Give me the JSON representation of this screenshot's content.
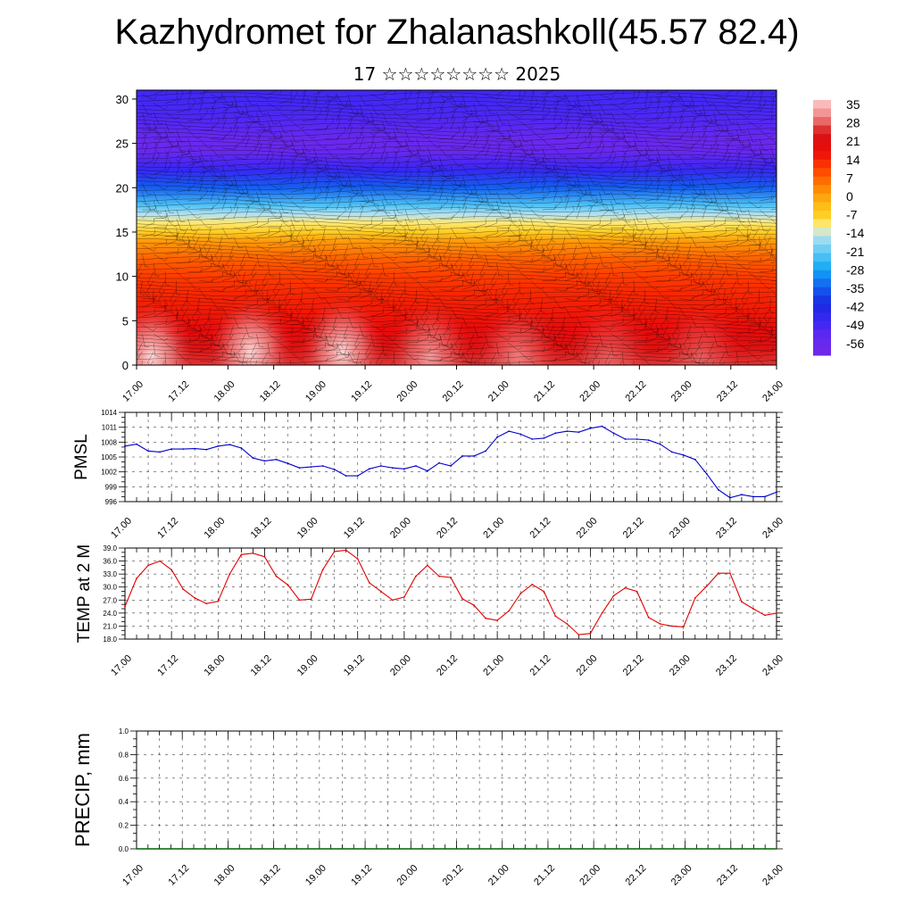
{
  "title": "Kazhydromet for Zhalanashkoll(45.57 82.4)",
  "subtitle": "17 ☆☆☆☆☆☆☆☆ 2025",
  "chart_data": [
    {
      "type": "heatmap",
      "title": "Kazhydromet for Zhalanashkoll(45.57 82.4)",
      "subtitle": "17 ☆☆☆☆☆☆☆☆ 2025",
      "xlabel": "",
      "ylabel": "",
      "x_ticks": [
        "17.00",
        "17.12",
        "18.00",
        "18.12",
        "19.00",
        "19.12",
        "20.00",
        "20.12",
        "21.00",
        "21.12",
        "22.00",
        "22.12",
        "23.00",
        "23.12",
        "24.00"
      ],
      "xlim": [
        0,
        168
      ],
      "y_ticks": [
        0,
        5,
        10,
        15,
        20,
        25,
        30
      ],
      "ylim": [
        0,
        31
      ],
      "colorbar_labels": [
        "35",
        "28",
        "21",
        "14",
        "7",
        "0",
        "-7",
        "-14",
        "-21",
        "-28",
        "-35",
        "-42",
        "-49",
        "-56"
      ],
      "colorbar_range": [
        -63,
        42
      ],
      "temperature_profile": {
        "heights": [
          0,
          2,
          4,
          6,
          8,
          10,
          12,
          14,
          15,
          16,
          17,
          18,
          20,
          22,
          24,
          25,
          26,
          28,
          30,
          31
        ],
        "values": [
          30,
          26,
          22,
          19,
          17,
          14,
          10,
          3,
          -5,
          -9,
          -14,
          -22,
          -35,
          -48,
          -58,
          -60,
          -56,
          -52,
          -50,
          -50
        ]
      },
      "warm_cells": [
        {
          "x": 4,
          "y": 1,
          "value": 40
        },
        {
          "x": 30,
          "y": 1.5,
          "value": 40
        },
        {
          "x": 54,
          "y": 1.5,
          "value": 40
        },
        {
          "x": 77,
          "y": 1,
          "value": 36
        },
        {
          "x": 100,
          "y": 1,
          "value": 34
        },
        {
          "x": 124,
          "y": 1,
          "value": 32
        },
        {
          "x": 148,
          "y": 1,
          "value": 32
        }
      ],
      "grid": false,
      "legend": "right"
    },
    {
      "type": "line",
      "ylabel": "PMSL",
      "ylim": [
        996,
        1014
      ],
      "y_ticks": [
        996,
        999,
        1002,
        1005,
        1008,
        1011,
        1014
      ],
      "x_ticks": [
        "17.00",
        "17.12",
        "18.00",
        "18.12",
        "19.00",
        "19.12",
        "20.00",
        "20.12",
        "21.00",
        "21.12",
        "22.00",
        "22.12",
        "23.00",
        "23.12",
        "24.00"
      ],
      "xlim": [
        0,
        168
      ],
      "grid": true,
      "series": [
        {
          "color": "#0000cc",
          "x": [
            0,
            3,
            6,
            9,
            12,
            15,
            18,
            21,
            24,
            27,
            30,
            33,
            36,
            39,
            42,
            45,
            48,
            51,
            54,
            57,
            60,
            63,
            66,
            69,
            72,
            75,
            78,
            81,
            84,
            87,
            90,
            93,
            96,
            99,
            102,
            105,
            108,
            111,
            114,
            117,
            120,
            123,
            126,
            129,
            132,
            135,
            138,
            141,
            144,
            147,
            150,
            153,
            156,
            159,
            162,
            165,
            168
          ],
          "values": [
            1007.2,
            1007.6,
            1006.2,
            1006.0,
            1006.6,
            1006.6,
            1006.7,
            1006.5,
            1007.2,
            1007.5,
            1006.8,
            1004.8,
            1004.2,
            1004.5,
            1003.7,
            1002.8,
            1003.0,
            1003.2,
            1002.5,
            1001.2,
            1001.2,
            1002.6,
            1003.2,
            1002.8,
            1002.6,
            1003.2,
            1002.2,
            1003.8,
            1003.2,
            1005.2,
            1005.2,
            1006.2,
            1009.0,
            1010.2,
            1009.6,
            1008.6,
            1008.8,
            1009.8,
            1010.2,
            1010.0,
            1010.8,
            1011.2,
            1009.8,
            1008.6,
            1008.6,
            1008.4,
            1007.6,
            1006.0,
            1005.4,
            1004.5,
            1001.6,
            998.4,
            996.8,
            997.4,
            997.0,
            997.0,
            997.9
          ]
        }
      ]
    },
    {
      "type": "line",
      "ylabel": "TEMP at 2 M",
      "ylim": [
        18,
        39
      ],
      "y_ticks": [
        "18.0",
        "21.0",
        "24.0",
        "27.0",
        "30.0",
        "33.0",
        "36.0",
        "39.0"
      ],
      "x_ticks": [
        "17.00",
        "17.12",
        "18.00",
        "18.12",
        "19.00",
        "19.12",
        "20.00",
        "20.12",
        "21.00",
        "21.12",
        "22.00",
        "22.12",
        "23.00",
        "23.12",
        "24.00"
      ],
      "xlim": [
        0,
        168
      ],
      "grid": true,
      "series": [
        {
          "color": "#e00000",
          "x": [
            0,
            3,
            6,
            9,
            12,
            15,
            18,
            21,
            24,
            27,
            30,
            33,
            36,
            39,
            42,
            45,
            48,
            51,
            54,
            57,
            60,
            63,
            66,
            69,
            72,
            75,
            78,
            81,
            84,
            87,
            90,
            93,
            96,
            99,
            102,
            105,
            108,
            111,
            114,
            117,
            120,
            123,
            126,
            129,
            132,
            135,
            138,
            141,
            144,
            147,
            150,
            153,
            156,
            159,
            162,
            165,
            168
          ],
          "values": [
            25.5,
            32.0,
            35.0,
            36.0,
            34.0,
            29.5,
            27.5,
            26.2,
            26.7,
            33.0,
            37.5,
            37.8,
            37.0,
            32.5,
            30.5,
            27.0,
            27.2,
            34.0,
            38.2,
            38.5,
            36.5,
            31.0,
            29.0,
            27.0,
            27.7,
            32.5,
            35.0,
            32.5,
            32.2,
            27.3,
            25.8,
            22.8,
            22.3,
            24.5,
            28.5,
            30.6,
            29.0,
            23.3,
            21.5,
            19.0,
            19.3,
            24.0,
            28.0,
            29.8,
            29.0,
            23.0,
            21.5,
            21.0,
            20.8,
            27.5,
            30.2,
            33.2,
            33.2,
            26.6,
            25.0,
            23.5,
            24.0
          ]
        }
      ]
    },
    {
      "type": "bar",
      "ylabel": "PRECIP, mm",
      "ylim": [
        0,
        1
      ],
      "y_ticks": [
        "0.0",
        "0.2",
        "0.4",
        "0.6",
        "0.8",
        "1.0"
      ],
      "x_ticks": [
        "17.00",
        "17.12",
        "18.00",
        "18.12",
        "19.00",
        "19.12",
        "20.00",
        "20.12",
        "21.00",
        "21.12",
        "22.00",
        "22.12",
        "23.00",
        "23.12",
        "24.00"
      ],
      "xlim": [
        0,
        168
      ],
      "grid": true,
      "color": "#006400",
      "x": [
        0,
        3,
        6,
        9,
        12,
        15,
        18,
        21,
        24,
        27,
        30,
        33,
        36,
        39,
        42,
        45,
        48,
        51,
        54,
        57,
        60,
        63,
        66,
        69,
        72,
        75,
        78,
        81,
        84,
        87,
        90,
        93,
        96,
        99,
        102,
        105,
        108,
        111,
        114,
        117,
        120,
        123,
        126,
        129,
        132,
        135,
        138,
        141,
        144,
        147,
        150,
        153,
        156,
        159,
        162,
        165,
        168
      ],
      "values": [
        0,
        0,
        0,
        0,
        0,
        0,
        0,
        0,
        0,
        0,
        0,
        0,
        0,
        0,
        0,
        0,
        0,
        0,
        0,
        0,
        0,
        0,
        0,
        0,
        0,
        0,
        0,
        0,
        0,
        0,
        0,
        0,
        0,
        0,
        0,
        0,
        0,
        0,
        0,
        0,
        0,
        0,
        0,
        0,
        0,
        0,
        0,
        0,
        0,
        0,
        0,
        0,
        0,
        0,
        0,
        0,
        0
      ]
    }
  ]
}
